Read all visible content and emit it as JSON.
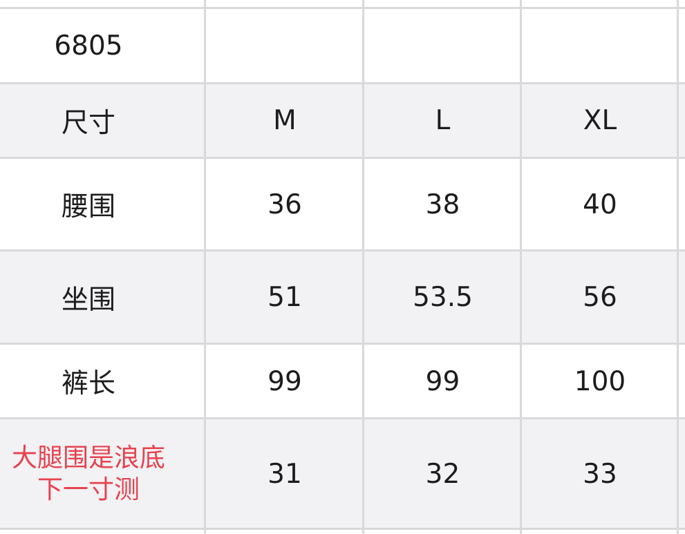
{
  "table": {
    "rows": [
      {
        "label": "6805",
        "values": [
          "",
          "",
          ""
        ],
        "shaded": false
      },
      {
        "label": "尺寸",
        "values": [
          "M",
          "L",
          "XL"
        ],
        "shaded": true
      },
      {
        "label": "腰围",
        "values": [
          "36",
          "38",
          "40"
        ],
        "shaded": false
      },
      {
        "label": "坐围",
        "values": [
          "51",
          "53.5",
          "56"
        ],
        "shaded": true
      },
      {
        "label": "裤长",
        "values": [
          "99",
          "99",
          "100"
        ],
        "shaded": false
      },
      {
        "label_lines": [
          "大腿围是浪底",
          "下一寸测"
        ],
        "values": [
          "31",
          "32",
          "33"
        ],
        "shaded": true
      }
    ]
  },
  "colors": {
    "grid": "#d9d9db",
    "shaded_row": "#f2f2f4",
    "note_text": "#e8424f",
    "text": "#1c1c1e"
  }
}
